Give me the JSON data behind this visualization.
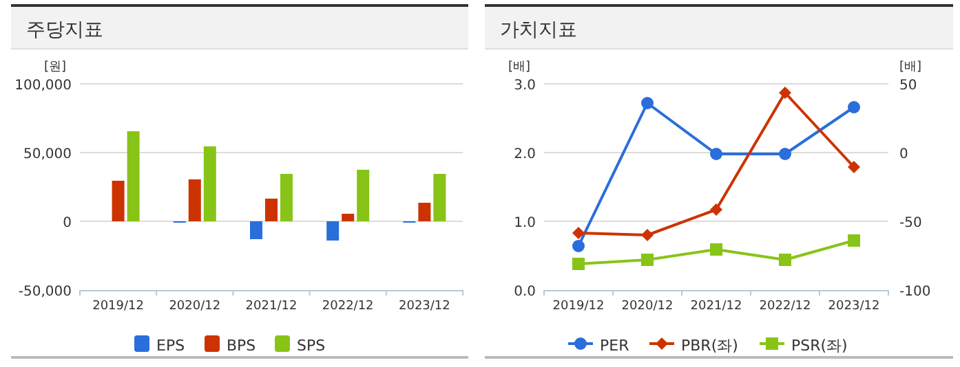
{
  "chart_data": [
    {
      "type": "bar",
      "title": "주당지표",
      "ylabel": "[원]",
      "categories": [
        "2019/12",
        "2020/12",
        "2021/12",
        "2022/12",
        "2023/12"
      ],
      "series": [
        {
          "name": "EPS",
          "color": "#2a6edb",
          "values": [
            null,
            -1000,
            -13000,
            -14000,
            -1000
          ]
        },
        {
          "name": "BPS",
          "color": "#cc3300",
          "values": [
            29500,
            30500,
            16500,
            5500,
            13500
          ]
        },
        {
          "name": "SPS",
          "color": "#88c417",
          "values": [
            65500,
            54500,
            34500,
            37500,
            34500
          ]
        }
      ],
      "ylim": [
        -50000,
        100000
      ],
      "yticks": [
        {
          "value": -50000,
          "label": "-50,000"
        },
        {
          "value": 0,
          "label": "0"
        },
        {
          "value": 50000,
          "label": "50,000"
        },
        {
          "value": 100000,
          "label": "100,000"
        }
      ],
      "grid": "y",
      "legend": "bottom"
    },
    {
      "type": "line",
      "title": "가치지표",
      "ylabel": "[배]",
      "y2label": "[배]",
      "categories": [
        "2019/12",
        "2020/12",
        "2021/12",
        "2022/12",
        "2023/12"
      ],
      "series": [
        {
          "name": "PER",
          "color": "#2a6edb",
          "axis": "y2",
          "marker": "circle",
          "values": [
            -68,
            36,
            -1,
            -1,
            33
          ]
        },
        {
          "name": "PBR(좌)",
          "color": "#cc3300",
          "marker": "diamond",
          "values": [
            0.83,
            0.8,
            1.17,
            2.87,
            1.79
          ]
        },
        {
          "name": "PSR(좌)",
          "color": "#88c417",
          "marker": "square",
          "values": [
            0.38,
            0.44,
            0.59,
            0.44,
            0.72
          ]
        }
      ],
      "ylim": [
        0,
        3
      ],
      "yticks": [
        {
          "value": 0,
          "label": "0.0"
        },
        {
          "value": 1,
          "label": "1.0"
        },
        {
          "value": 2,
          "label": "2.0"
        },
        {
          "value": 3,
          "label": "3.0"
        }
      ],
      "y2lim": [
        -100,
        50
      ],
      "y2ticks": [
        -100,
        -50,
        0,
        50
      ],
      "grid": "y",
      "legend": "bottom"
    }
  ]
}
